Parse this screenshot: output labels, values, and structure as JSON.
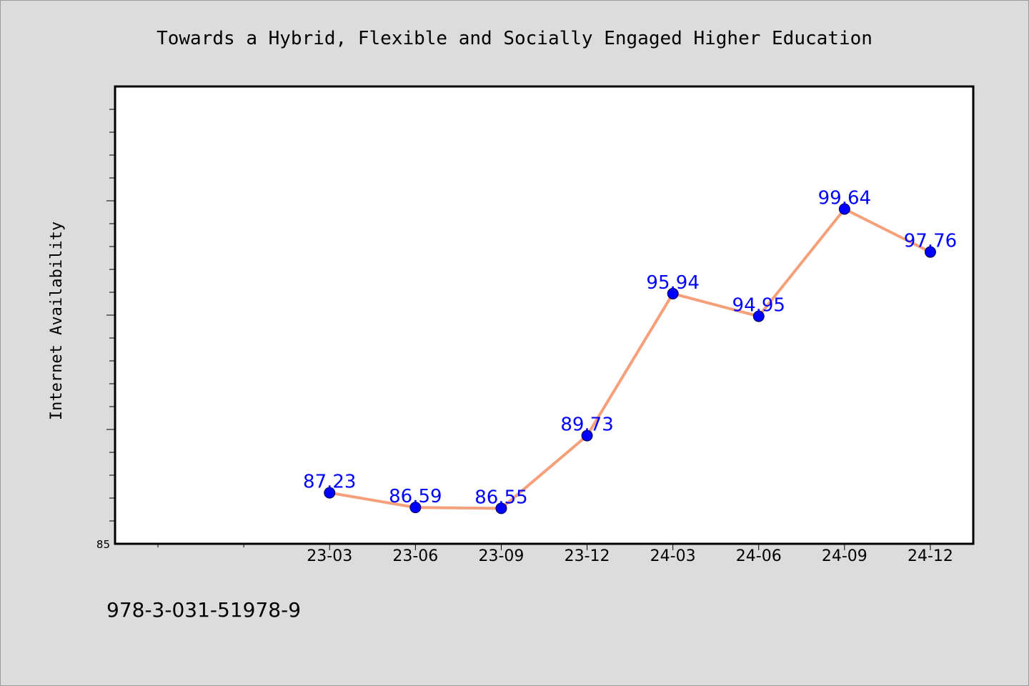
{
  "chart_data": {
    "type": "line",
    "title": "Towards a Hybrid, Flexible and Socially Engaged Higher Education",
    "xlabel": "",
    "ylabel": "Internet Availability",
    "categories": [
      "23-03",
      "23-06",
      "23-09",
      "23-12",
      "24-03",
      "24-06",
      "24-09",
      "24-12"
    ],
    "values": [
      87.23,
      86.59,
      86.55,
      89.73,
      95.94,
      94.95,
      99.64,
      97.76
    ],
    "data_labels": [
      "87.23",
      "86.59",
      "86.55",
      "89.73",
      "95.94",
      "94.95",
      "99.64",
      "97.76"
    ],
    "ylim": [
      85,
      105
    ],
    "y_tick_labels_shown": [
      "85"
    ],
    "extra_leading_category_slots": 2,
    "grid": false,
    "legend": "none",
    "colors": {
      "line": "#f5a07a",
      "marker": "#0000ff",
      "data_label": "#0000ff",
      "plot_bg": "#ffffff",
      "page_bg": "#dcdcdc"
    }
  },
  "footer": {
    "isbn": "978-3-031-51978-9"
  }
}
